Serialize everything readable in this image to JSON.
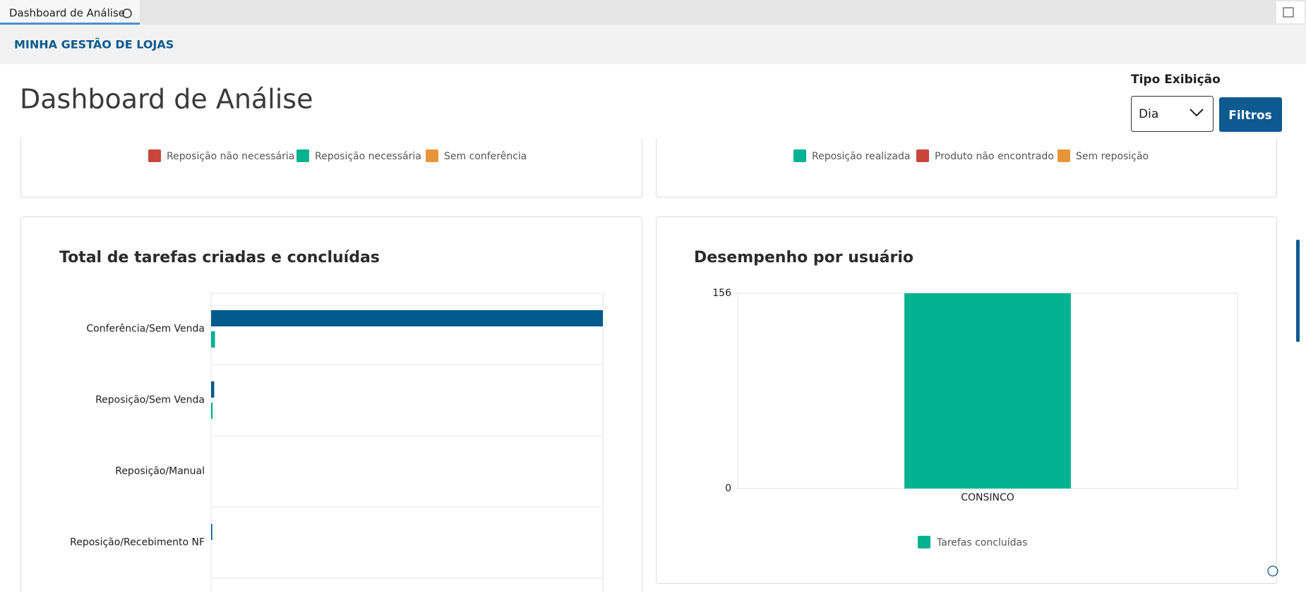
{
  "tab": {
    "label": "Dashboard de Análise"
  },
  "header": {
    "title": "MINHA GESTÃO DE LOJAS"
  },
  "page": {
    "title": "Dashboard de Análise",
    "display_label": "Tipo Exibição",
    "display_value": "Dia",
    "filter_button": "Filtros"
  },
  "top_legends": [
    [
      {
        "name": "Reposição não necessária",
        "color": "#c9463d"
      },
      {
        "name": "Reposição necessária",
        "color": "#00b28f"
      },
      {
        "name": "Sem conferência",
        "color": "#e8953a"
      }
    ],
    [
      {
        "name": "Reposição realizada",
        "color": "#00b28f"
      },
      {
        "name": "Produto não encontrado",
        "color": "#c9463d"
      },
      {
        "name": "Sem reposição",
        "color": "#e8953a"
      }
    ]
  ],
  "chart_data": [
    {
      "type": "hbar",
      "title": "Total de tarefas criadas e concluídas",
      "categories": [
        "Conferência/Sem Venda",
        "Reposição/Sem Venda",
        "Reposição/Manual",
        "Reposição/Recebimento NF"
      ],
      "series": [
        {
          "color": "#005a8c",
          "values": [
            100,
            0.8,
            0,
            0.3
          ]
        },
        {
          "color": "#00b28f",
          "values": [
            1,
            0.4,
            0,
            0
          ]
        }
      ],
      "xlim": [
        0,
        100
      ]
    },
    {
      "type": "bar",
      "title": "Desempenho por usuário",
      "categories": [
        "CONSINCO"
      ],
      "series": [
        {
          "name": "Tarefas concluídas",
          "color": "#00b28f",
          "values": [
            156
          ]
        }
      ],
      "ylim": [
        0,
        156
      ],
      "yticks": [
        0,
        156
      ]
    }
  ]
}
